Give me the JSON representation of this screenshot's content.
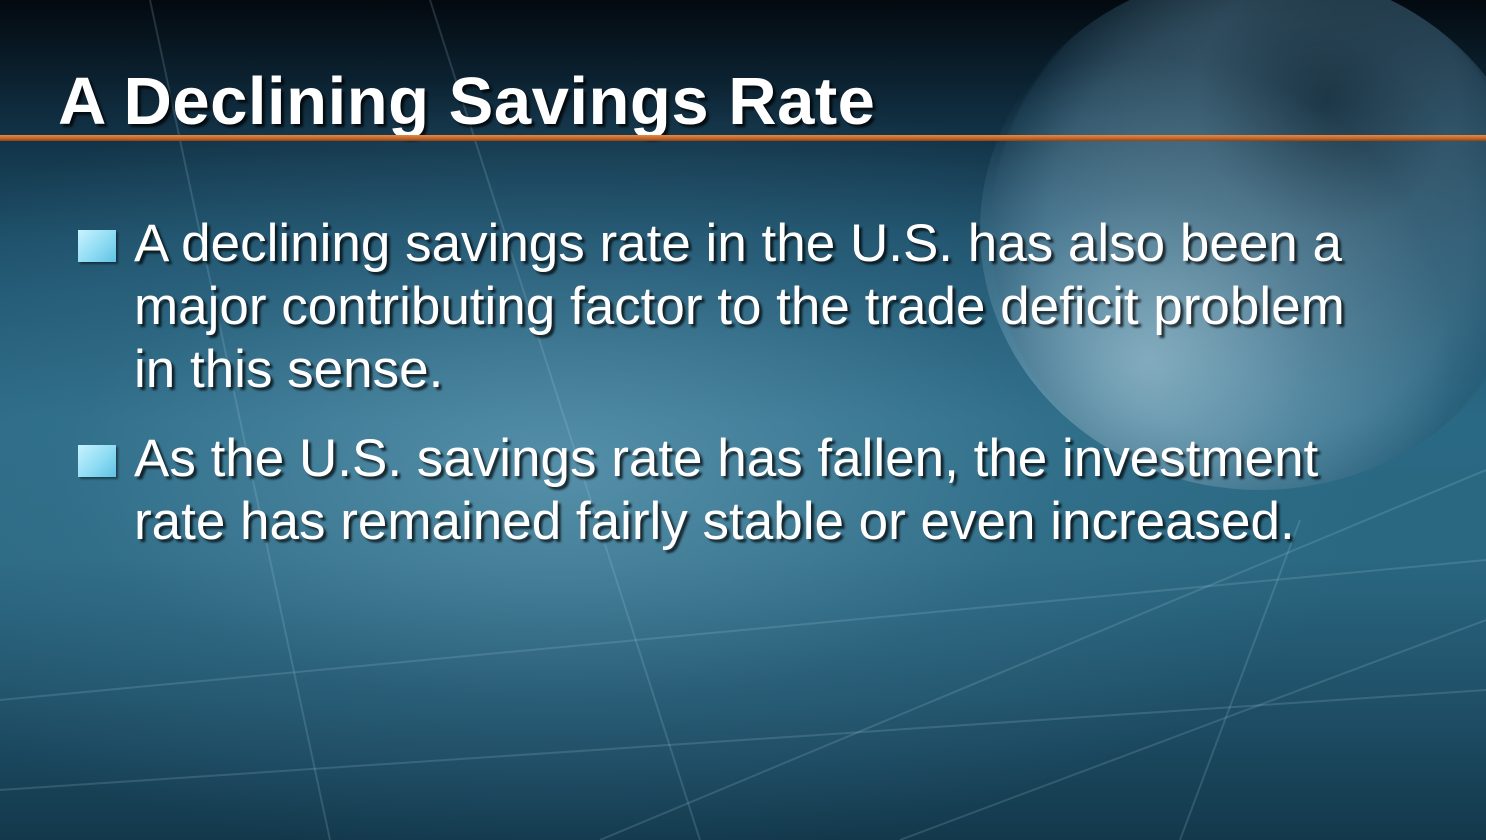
{
  "slide": {
    "title": "A Declining Savings Rate",
    "bullets": [
      {
        "text": "A declining savings rate in the U.S. has also been a major contributing factor to the trade deficit problem in this sense."
      },
      {
        "text": "As the U.S. savings rate has fallen, the investment rate has remained fairly stable or even increased."
      }
    ]
  },
  "colors": {
    "accent_rule": "#d2722f",
    "bullet_marker": "#8fdcf4",
    "text": "#ffffff",
    "background": "#2a6984"
  },
  "icons": {
    "bullet": "square-bullet-icon",
    "background_art": "globe-icon"
  }
}
